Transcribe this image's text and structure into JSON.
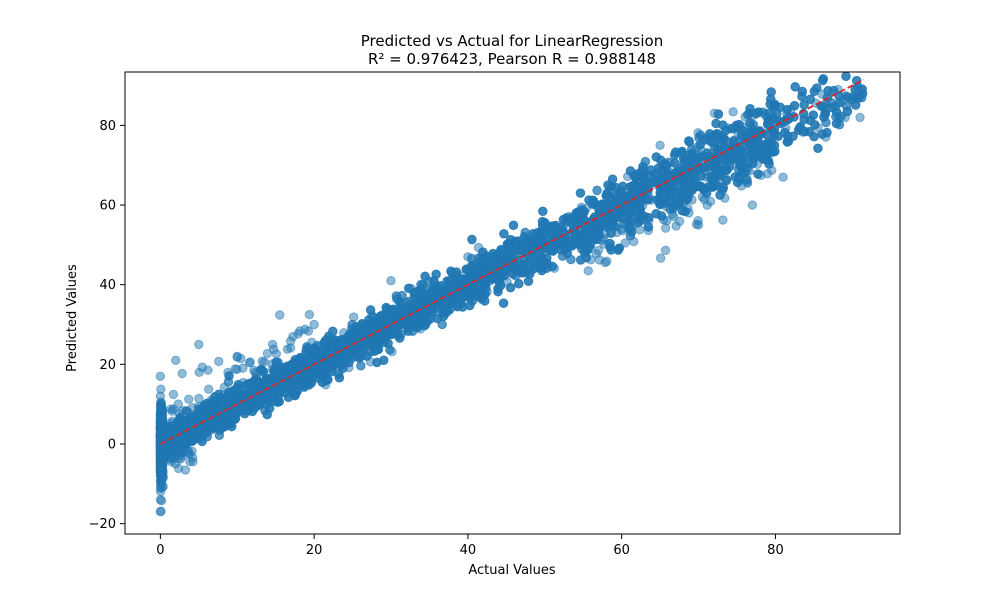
{
  "chart_data": {
    "type": "scatter",
    "title": "Predicted vs Actual for LinearRegression",
    "subtitle": "R² = 0.976423, Pearson R = 0.988148",
    "xlabel": "Actual Values",
    "ylabel": "Predicted Values",
    "xlim": [
      -4.6,
      96.2
    ],
    "ylim": [
      -22.6,
      93.4
    ],
    "x_ticks": [
      0,
      20,
      40,
      60,
      80
    ],
    "y_ticks": [
      -20,
      0,
      20,
      40,
      60,
      80
    ],
    "x_tick_labels": [
      "0",
      "20",
      "40",
      "60",
      "80"
    ],
    "y_tick_labels": [
      "−20",
      "0",
      "20",
      "40",
      "60",
      "80"
    ],
    "grid": false,
    "legend": "none",
    "point_color": "#1f77b4",
    "point_alpha": 0.5,
    "reference_line": {
      "style": "dashed",
      "color": "#d62728",
      "x": [
        0,
        91.5
      ],
      "y": [
        0,
        91.5
      ]
    },
    "point_distribution": {
      "relationship": "predicted ≈ actual",
      "x_range": [
        0,
        91.5
      ],
      "y_range": [
        -17.5,
        84
      ],
      "x_zero_cluster_y_range": [
        -17.5,
        17.5
      ]
    },
    "sample_points": [
      {
        "x": 0,
        "y": -17
      },
      {
        "x": 0,
        "y": -14
      },
      {
        "x": 0,
        "y": -8
      },
      {
        "x": 0,
        "y": 5
      },
      {
        "x": 0,
        "y": 12
      },
      {
        "x": 0,
        "y": 17
      },
      {
        "x": 2,
        "y": 21
      },
      {
        "x": 5,
        "y": 25
      },
      {
        "x": 10,
        "y": 22
      },
      {
        "x": 20,
        "y": 30
      },
      {
        "x": 30,
        "y": 41
      },
      {
        "x": 40,
        "y": 47
      },
      {
        "x": 50,
        "y": 55
      },
      {
        "x": 60,
        "y": 63
      },
      {
        "x": 65,
        "y": 75
      },
      {
        "x": 70,
        "y": 55
      },
      {
        "x": 77,
        "y": 60
      },
      {
        "x": 81,
        "y": 67
      },
      {
        "x": 82,
        "y": 84
      },
      {
        "x": 88,
        "y": 83
      },
      {
        "x": 91,
        "y": 82
      }
    ]
  }
}
